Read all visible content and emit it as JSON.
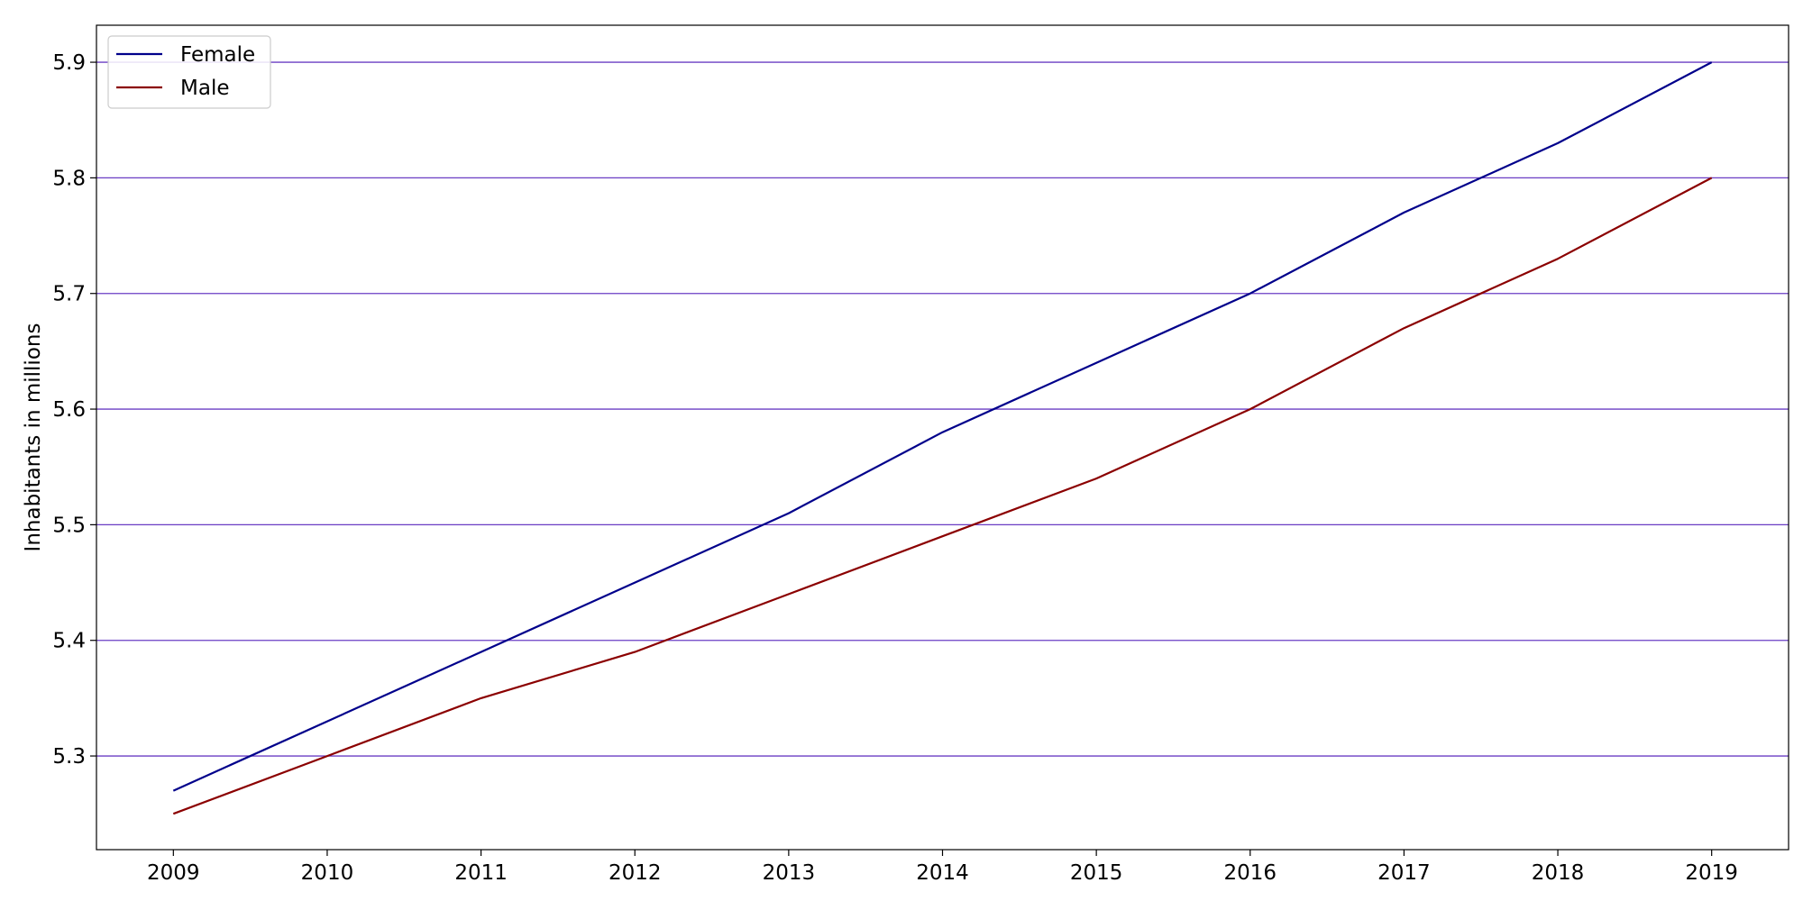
{
  "chart_data": {
    "type": "line",
    "title": "",
    "xlabel": "",
    "ylabel": "Inhabitants in millions",
    "x": [
      2009,
      2010,
      2011,
      2012,
      2013,
      2014,
      2015,
      2016,
      2017,
      2018,
      2019
    ],
    "x_tick_labels": [
      "2009",
      "2010",
      "2011",
      "2012",
      "2013",
      "2014",
      "2015",
      "2016",
      "2017",
      "2018",
      "2019"
    ],
    "xlim": [
      2008.5,
      2019.5
    ],
    "ylim": [
      5.219,
      5.932
    ],
    "y_ticks": [
      5.3,
      5.4,
      5.5,
      5.6,
      5.7,
      5.8,
      5.9
    ],
    "y_tick_labels": [
      "5.3",
      "5.4",
      "5.5",
      "5.6",
      "5.7",
      "5.8",
      "5.9"
    ],
    "grid": "horizontal",
    "grid_color": "#6a3dc4",
    "legend_position": "top-left",
    "series": [
      {
        "name": "Female",
        "color": "#00008b",
        "values": [
          5.27,
          5.33,
          5.39,
          5.45,
          5.51,
          5.58,
          5.64,
          5.7,
          5.77,
          5.83,
          5.9
        ]
      },
      {
        "name": "Male",
        "color": "#8b0000",
        "values": [
          5.25,
          5.3,
          5.35,
          5.39,
          5.44,
          5.49,
          5.54,
          5.6,
          5.67,
          5.73,
          5.8
        ]
      }
    ]
  }
}
